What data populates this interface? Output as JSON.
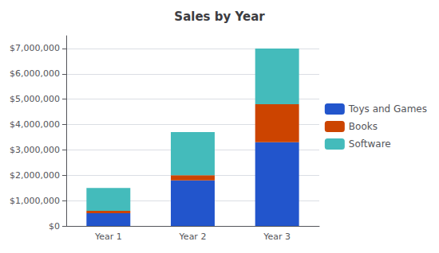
{
  "chart_data": {
    "type": "bar",
    "title": "Sales by Year",
    "categories": [
      "Year 1",
      "Year 2",
      "Year 3"
    ],
    "series": [
      {
        "name": "Toys and Games",
        "color": "#2255CC",
        "values": [
          500000,
          1800000,
          3300000
        ]
      },
      {
        "name": "Books",
        "color": "#CC4400",
        "values": [
          100000,
          200000,
          1500000
        ]
      },
      {
        "name": "Software",
        "color": "#44BBBB",
        "values": [
          900000,
          1700000,
          2200000
        ]
      }
    ],
    "stacked": true,
    "ylim": [
      0,
      7500000
    ],
    "yticks": [
      {
        "value": 0,
        "label": "$0"
      },
      {
        "value": 1000000,
        "label": "$1,000,000"
      },
      {
        "value": 2000000,
        "label": "$2,000,000"
      },
      {
        "value": 3000000,
        "label": "$3,000,000"
      },
      {
        "value": 4000000,
        "label": "$4,000,000"
      },
      {
        "value": 5000000,
        "label": "$5,000,000"
      },
      {
        "value": 6000000,
        "label": "$6,000,000"
      },
      {
        "value": 7000000,
        "label": "$7,000,000"
      }
    ],
    "grid": true,
    "legend": "right"
  }
}
